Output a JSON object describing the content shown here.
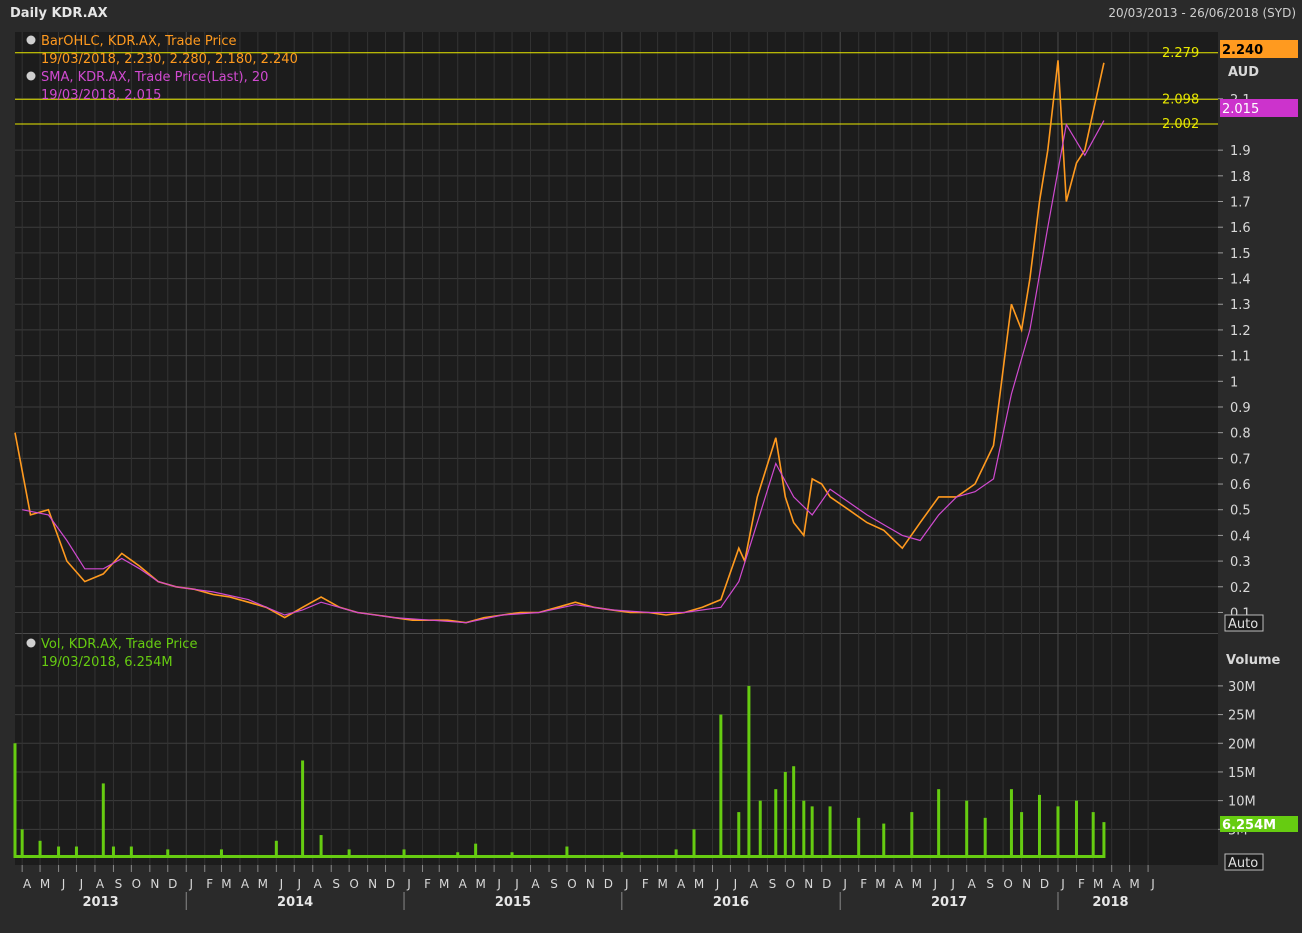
{
  "header": {
    "title": "Daily KDR.AX",
    "date_range": "20/03/2013 - 26/06/2018 (SYD)"
  },
  "price_panel": {
    "legend_ohlc_name": "BarOHLC, KDR.AX, Trade Price",
    "legend_ohlc_values": "19/03/2018, 2.230, 2.280, 2.180, 2.240",
    "legend_sma_name": "SMA, KDR.AX, Trade Price(Last),  20",
    "legend_sma_values": "19/03/2018, 2.015",
    "axis_unit": "AUD",
    "last_price_label": "2.240",
    "sma_label": "2.015",
    "auto_label": "Auto",
    "hlines": [
      {
        "label": "2.279",
        "value": 2.279
      },
      {
        "label": "2.098",
        "value": 2.098
      },
      {
        "label": "2.002",
        "value": 2.002
      }
    ],
    "colors": {
      "ohlc": "#ff9a1f",
      "sma": "#d04ad0",
      "hline": "#e8e800",
      "grid": "#3d3d3d"
    }
  },
  "volume_panel": {
    "legend_name": "Vol, KDR.AX, Trade Price",
    "legend_values": "19/03/2018, 6.254M",
    "axis_title": "Volume",
    "last_volume_label": "6.254M",
    "auto_label": "Auto",
    "color": "#66cc11"
  },
  "chart_data": [
    {
      "type": "line",
      "title": "",
      "series": [
        {
          "name": "BarOHLC, KDR.AX, Trade Price",
          "x": [
            "2013-03-20",
            "2013-04-15",
            "2013-05-15",
            "2013-06-15",
            "2013-07-15",
            "2013-08-15",
            "2013-09-15",
            "2013-10-15",
            "2013-11-15",
            "2013-12-15",
            "2014-01-15",
            "2014-02-15",
            "2014-03-15",
            "2014-04-15",
            "2014-05-15",
            "2014-06-15",
            "2014-07-15",
            "2014-08-15",
            "2014-09-15",
            "2014-10-15",
            "2014-11-15",
            "2014-12-15",
            "2015-01-15",
            "2015-02-15",
            "2015-03-15",
            "2015-04-15",
            "2015-05-15",
            "2015-06-15",
            "2015-07-15",
            "2015-08-15",
            "2015-09-15",
            "2015-10-15",
            "2015-11-15",
            "2015-12-15",
            "2016-01-15",
            "2016-02-15",
            "2016-03-15",
            "2016-04-15",
            "2016-05-15",
            "2016-06-15",
            "2016-07-15",
            "2016-07-25",
            "2016-08-15",
            "2016-09-15",
            "2016-10-01",
            "2016-10-15",
            "2016-11-01",
            "2016-11-15",
            "2016-12-01",
            "2016-12-15",
            "2017-01-15",
            "2017-02-15",
            "2017-03-15",
            "2017-04-15",
            "2017-05-15",
            "2017-06-15",
            "2017-07-15",
            "2017-08-15",
            "2017-09-15",
            "2017-10-15",
            "2017-11-01",
            "2017-11-15",
            "2017-12-01",
            "2017-12-15",
            "2018-01-01",
            "2018-01-15",
            "2018-02-01",
            "2018-02-15",
            "2018-03-01",
            "2018-03-19"
          ],
          "values": [
            0.8,
            0.48,
            0.5,
            0.3,
            0.22,
            0.25,
            0.33,
            0.28,
            0.22,
            0.2,
            0.19,
            0.17,
            0.16,
            0.14,
            0.12,
            0.08,
            0.12,
            0.16,
            0.12,
            0.1,
            0.09,
            0.08,
            0.07,
            0.07,
            0.07,
            0.06,
            0.08,
            0.09,
            0.1,
            0.1,
            0.12,
            0.14,
            0.12,
            0.11,
            0.1,
            0.1,
            0.09,
            0.1,
            0.12,
            0.15,
            0.35,
            0.3,
            0.55,
            0.78,
            0.55,
            0.45,
            0.4,
            0.62,
            0.6,
            0.55,
            0.5,
            0.45,
            0.42,
            0.35,
            0.45,
            0.55,
            0.55,
            0.6,
            0.75,
            1.3,
            1.2,
            1.4,
            1.7,
            1.9,
            2.25,
            1.7,
            1.85,
            1.9,
            2.05,
            2.24
          ]
        },
        {
          "name": "SMA, KDR.AX, Trade Price(Last),  20",
          "x": [
            "2013-04-01",
            "2013-05-15",
            "2013-06-15",
            "2013-07-15",
            "2013-08-15",
            "2013-09-15",
            "2013-10-15",
            "2013-11-15",
            "2013-12-15",
            "2014-02-15",
            "2014-04-15",
            "2014-06-15",
            "2014-07-15",
            "2014-08-15",
            "2014-10-15",
            "2014-12-15",
            "2015-02-15",
            "2015-04-15",
            "2015-06-15",
            "2015-08-15",
            "2015-10-15",
            "2015-12-15",
            "2016-02-15",
            "2016-04-15",
            "2016-06-15",
            "2016-07-15",
            "2016-08-15",
            "2016-09-15",
            "2016-10-15",
            "2016-11-15",
            "2016-12-15",
            "2017-02-15",
            "2017-04-15",
            "2017-05-15",
            "2017-06-15",
            "2017-07-15",
            "2017-08-15",
            "2017-09-15",
            "2017-10-15",
            "2017-11-15",
            "2017-12-15",
            "2018-01-15",
            "2018-02-15",
            "2018-03-19"
          ],
          "values": [
            0.5,
            0.48,
            0.38,
            0.27,
            0.27,
            0.31,
            0.27,
            0.22,
            0.2,
            0.18,
            0.15,
            0.09,
            0.11,
            0.14,
            0.1,
            0.08,
            0.07,
            0.06,
            0.09,
            0.1,
            0.13,
            0.11,
            0.1,
            0.1,
            0.12,
            0.22,
            0.45,
            0.68,
            0.55,
            0.48,
            0.58,
            0.48,
            0.4,
            0.38,
            0.48,
            0.55,
            0.57,
            0.62,
            0.95,
            1.2,
            1.6,
            2.0,
            1.88,
            2.015
          ]
        }
      ],
      "xlabel": "",
      "ylabel": "AUD",
      "ylim": [
        0.02,
        2.36
      ],
      "yticks": [
        "0.1",
        "0.2",
        "0.3",
        "0.4",
        "0.5",
        "0.6",
        "0.7",
        "0.8",
        "0.9",
        "1",
        "1.1",
        "1.2",
        "1.3",
        "1.4",
        "1.5",
        "1.6",
        "1.7",
        "1.8",
        "1.9",
        "2.1"
      ],
      "ytick_values": [
        0.1,
        0.2,
        0.3,
        0.4,
        0.5,
        0.6,
        0.7,
        0.8,
        0.9,
        1.0,
        1.1,
        1.2,
        1.3,
        1.4,
        1.5,
        1.6,
        1.7,
        1.8,
        1.9,
        2.1
      ],
      "grid": true,
      "legend": "top-left"
    },
    {
      "type": "bar",
      "title": "",
      "series": [
        {
          "name": "Vol, KDR.AX, Trade Price",
          "x": [
            "2013-03-20",
            "2013-04-01",
            "2013-05-01",
            "2013-06-01",
            "2013-07-01",
            "2013-08-15",
            "2013-09-01",
            "2013-10-01",
            "2013-12-01",
            "2014-03-01",
            "2014-06-01",
            "2014-07-15",
            "2014-08-15",
            "2014-10-01",
            "2015-01-01",
            "2015-04-01",
            "2015-05-01",
            "2015-07-01",
            "2015-10-01",
            "2016-01-01",
            "2016-04-01",
            "2016-05-01",
            "2016-06-15",
            "2016-07-15",
            "2016-08-01",
            "2016-08-20",
            "2016-09-15",
            "2016-10-01",
            "2016-10-15",
            "2016-11-01",
            "2016-11-15",
            "2016-12-15",
            "2017-02-01",
            "2017-03-15",
            "2017-05-01",
            "2017-06-15",
            "2017-08-01",
            "2017-09-01",
            "2017-10-15",
            "2017-11-01",
            "2017-12-01",
            "2018-01-01",
            "2018-02-01",
            "2018-03-01",
            "2018-03-19"
          ],
          "values": [
            20,
            5,
            3,
            2,
            2,
            13,
            2,
            2,
            1.5,
            1.5,
            3,
            17,
            4,
            1.5,
            1.5,
            1,
            2.5,
            1,
            2,
            1,
            1.5,
            5,
            25,
            8,
            30,
            10,
            12,
            15,
            16,
            10,
            9,
            9,
            7,
            6,
            8,
            12,
            10,
            7,
            12,
            8,
            11,
            9,
            10,
            8,
            6.254
          ]
        }
      ],
      "xlabel": "",
      "ylabel": "Volume",
      "ylim": [
        0,
        38
      ],
      "yticks": [
        "5M",
        "10M",
        "15M",
        "20M",
        "25M",
        "30M"
      ],
      "ytick_values": [
        5,
        10,
        15,
        20,
        25,
        30
      ],
      "grid": true
    }
  ],
  "time_axis": {
    "x_start": "2013-03-20",
    "x_end": "2018-06-26",
    "month_letters": [
      "A",
      "M",
      "J",
      "J",
      "A",
      "S",
      "O",
      "N",
      "D",
      "J",
      "F",
      "M",
      "A",
      "M",
      "J",
      "J",
      "A",
      "S",
      "O",
      "N",
      "D",
      "J",
      "F",
      "M",
      "A",
      "M",
      "J",
      "J",
      "A",
      "S",
      "O",
      "N",
      "D",
      "J",
      "F",
      "M",
      "A",
      "M",
      "J",
      "J",
      "A",
      "S",
      "O",
      "N",
      "D",
      "J",
      "F",
      "M",
      "A",
      "M",
      "J",
      "J",
      "A",
      "S",
      "O",
      "N",
      "D",
      "J",
      "F",
      "M",
      "A",
      "M",
      "J"
    ],
    "year_labels": [
      "2013",
      "2014",
      "2015",
      "2016",
      "2017",
      "2018"
    ]
  }
}
